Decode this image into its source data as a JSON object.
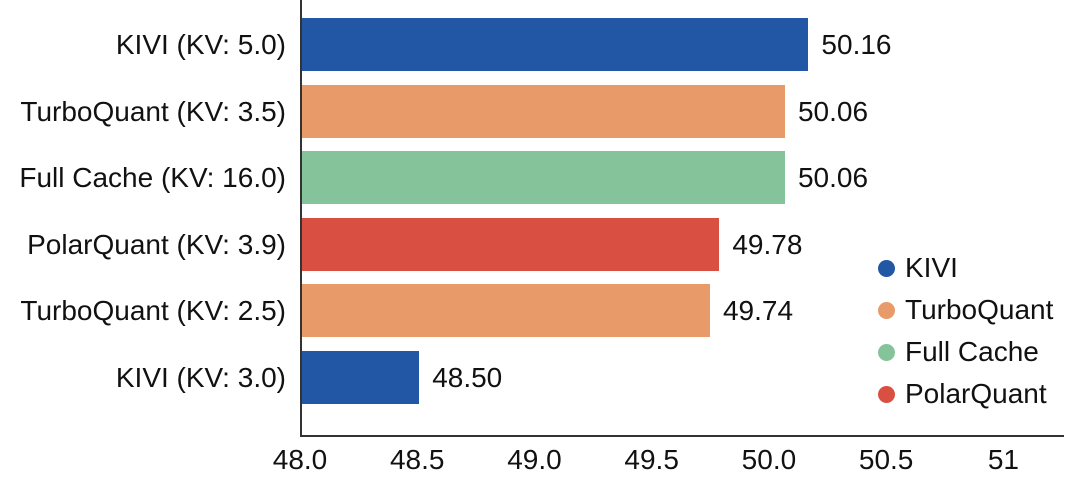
{
  "chart_data": {
    "type": "bar",
    "orientation": "horizontal",
    "title": "",
    "xlabel": "",
    "ylabel": "",
    "grid": false,
    "categories": [
      "KIVI (KV: 5.0)",
      "TurboQuant (KV: 3.5)",
      "Full Cache (KV: 16.0)",
      "PolarQuant (KV: 3.9)",
      "TurboQuant (KV: 2.5)",
      "KIVI (KV: 3.0)"
    ],
    "values": [
      50.16,
      50.06,
      50.06,
      49.78,
      49.74,
      48.5
    ],
    "value_labels": [
      "50.16",
      "50.06",
      "50.06",
      "49.78",
      "49.74",
      "48.50"
    ],
    "bar_series": [
      "KIVI",
      "TurboQuant",
      "Full Cache",
      "PolarQuant",
      "TurboQuant",
      "KIVI"
    ],
    "x_ticks": [
      48.0,
      48.5,
      49.0,
      49.5,
      50.0,
      50.5,
      51
    ],
    "x_tick_labels": [
      "48.0",
      "48.5",
      "49.0",
      "49.5",
      "50.0",
      "50.5",
      "51"
    ],
    "xlim": [
      48.0,
      51.25
    ],
    "legend_position": "right-middle",
    "legend": [
      {
        "label": "KIVI",
        "color": "#2257A5"
      },
      {
        "label": "TurboQuant",
        "color": "#E89B69"
      },
      {
        "label": "Full Cache",
        "color": "#85C49B"
      },
      {
        "label": "PolarQuant",
        "color": "#D95042"
      }
    ]
  },
  "colors": {
    "background": "#ffffff",
    "axis": "#333333",
    "text": "#111111"
  }
}
